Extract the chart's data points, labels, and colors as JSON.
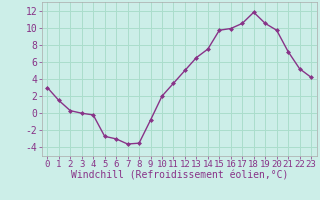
{
  "x": [
    0,
    1,
    2,
    3,
    4,
    5,
    6,
    7,
    8,
    9,
    10,
    11,
    12,
    13,
    14,
    15,
    16,
    17,
    18,
    19,
    20,
    21,
    22,
    23
  ],
  "y": [
    3.0,
    1.5,
    0.3,
    0.0,
    -0.2,
    -2.7,
    -3.0,
    -3.6,
    -3.5,
    -0.8,
    2.0,
    3.5,
    5.0,
    6.5,
    7.5,
    9.7,
    9.9,
    10.5,
    11.8,
    10.5,
    9.7,
    7.2,
    5.2,
    4.2
  ],
  "line_color": "#883388",
  "marker": "D",
  "markersize": 2.0,
  "linewidth": 1.0,
  "xlabel": "Windchill (Refroidissement éolien,°C)",
  "xlabel_fontsize": 7,
  "ylabel_ticks": [
    -4,
    -2,
    0,
    2,
    4,
    6,
    8,
    10,
    12
  ],
  "xticks": [
    0,
    1,
    2,
    3,
    4,
    5,
    6,
    7,
    8,
    9,
    10,
    11,
    12,
    13,
    14,
    15,
    16,
    17,
    18,
    19,
    20,
    21,
    22,
    23
  ],
  "xlim": [
    -0.5,
    23.5
  ],
  "ylim": [
    -5,
    13
  ],
  "background_color": "#cceee8",
  "grid_color": "#aaddcc",
  "tick_fontsize": 6.5,
  "ytick_fontsize": 7
}
